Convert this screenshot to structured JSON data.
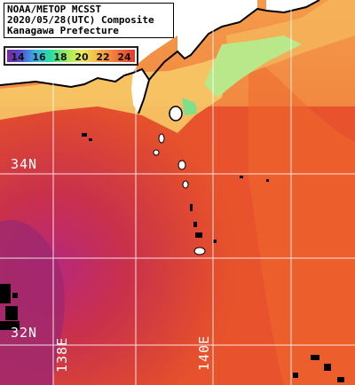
{
  "header": {
    "line1": "NOAA/METOP MCSST",
    "line2": "2020/05/28(UTC) Composite",
    "line3": "Kanagawa Prefecture"
  },
  "legend": {
    "ticks": [
      "14",
      "16",
      "18",
      "20",
      "22",
      "24"
    ]
  },
  "grid": {
    "lat_labels": [
      "34N",
      "32N"
    ],
    "lon_labels": [
      "138E",
      "140E"
    ]
  },
  "colors": {
    "sea_warm": "#ea5a2a",
    "sea_hot": "#c82c3a",
    "sea_cool": "#f08a44",
    "coastal_mild": "#f6c866",
    "coastal_cold": "#b8e88a",
    "land": "#ffffff",
    "no_data": "#000000"
  }
}
